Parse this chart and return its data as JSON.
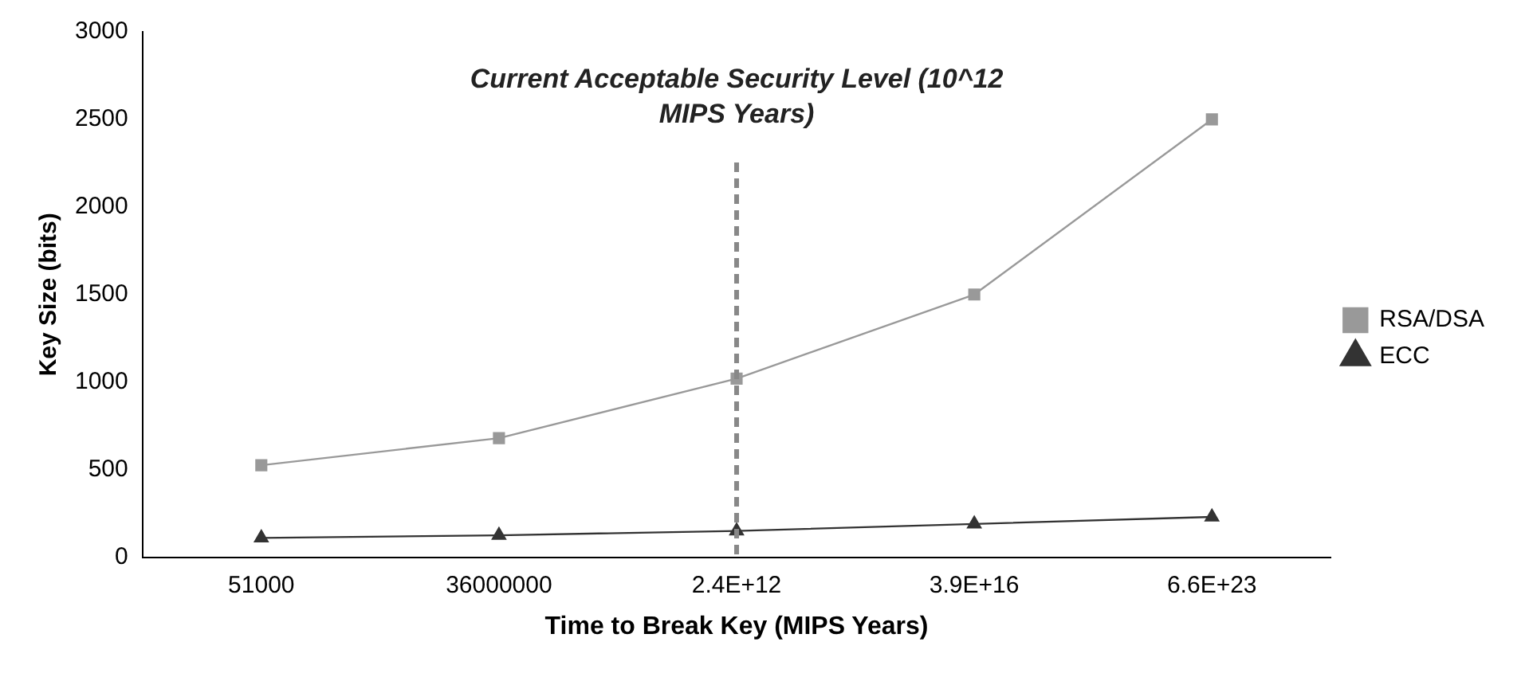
{
  "chart_data": {
    "type": "line",
    "xlabel": "Time to Break Key (MIPS Years)",
    "ylabel": "Key Size (bits)",
    "categories": [
      "51000",
      "36000000",
      "2.4E+12",
      "3.9E+16",
      "6.6E+23"
    ],
    "series": [
      {
        "name": "RSA/DSA",
        "color": "#999999",
        "marker": "square",
        "values": [
          525,
          680,
          1020,
          1500,
          2500
        ]
      },
      {
        "name": "ECC",
        "color": "#333333",
        "marker": "triangle",
        "values": [
          110,
          125,
          150,
          190,
          230
        ]
      }
    ],
    "ylim": [
      0,
      3000
    ],
    "yticks": [
      0,
      500,
      1000,
      1500,
      2000,
      2500,
      3000
    ],
    "grid": false,
    "legend": "right",
    "line_style": "solid",
    "ref_lines": [
      {
        "axis": "x",
        "value": "2.4E+12",
        "label": "Current Acceptable Security Level (10^12 MIPS Years)",
        "color": "#888888",
        "line_style": "dashed"
      }
    ]
  }
}
